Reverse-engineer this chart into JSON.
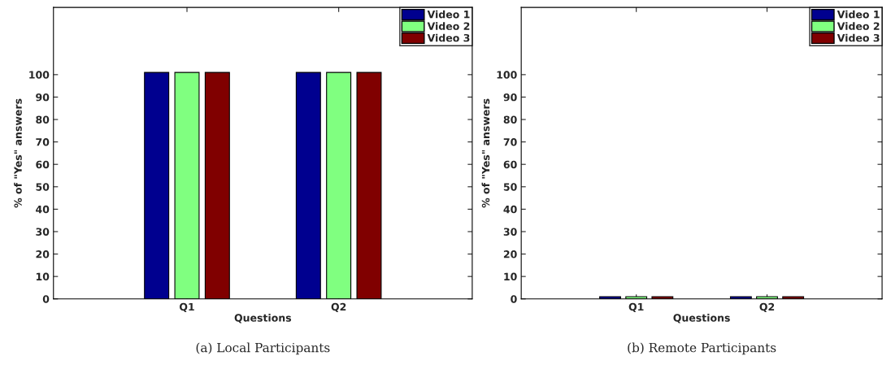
{
  "chart_data": [
    {
      "type": "bar",
      "title": "(a) Local Participants",
      "xlabel": "Questions",
      "ylabel": "% of \"Yes\" answers",
      "categories": [
        "Q1",
        "Q2"
      ],
      "series": [
        {
          "name": "Video 1",
          "color": "#00008f",
          "values": [
            101,
            101
          ]
        },
        {
          "name": "Video 2",
          "color": "#80ff80",
          "values": [
            101,
            101
          ]
        },
        {
          "name": "Video 3",
          "color": "#800000",
          "values": [
            101,
            101
          ]
        }
      ],
      "ylim": [
        0,
        130
      ],
      "yticks": [
        0,
        10,
        20,
        30,
        40,
        50,
        60,
        70,
        80,
        90,
        100
      ],
      "legend": "top right",
      "grid": false
    },
    {
      "type": "bar",
      "title": "(b) Remote Participants",
      "xlabel": "Questions",
      "ylabel": "% of \"Yes\" answers",
      "categories": [
        "Q1",
        "Q2"
      ],
      "series": [
        {
          "name": "Video 1",
          "color": "#00008f",
          "values": [
            1,
            1
          ]
        },
        {
          "name": "Video 2",
          "color": "#80ff80",
          "values": [
            1,
            1
          ]
        },
        {
          "name": "Video 3",
          "color": "#800000",
          "values": [
            1,
            1
          ]
        }
      ],
      "ylim": [
        0,
        130
      ],
      "yticks": [
        0,
        10,
        20,
        30,
        40,
        50,
        60,
        70,
        80,
        90,
        100
      ],
      "legend": "top right",
      "grid": false
    }
  ]
}
